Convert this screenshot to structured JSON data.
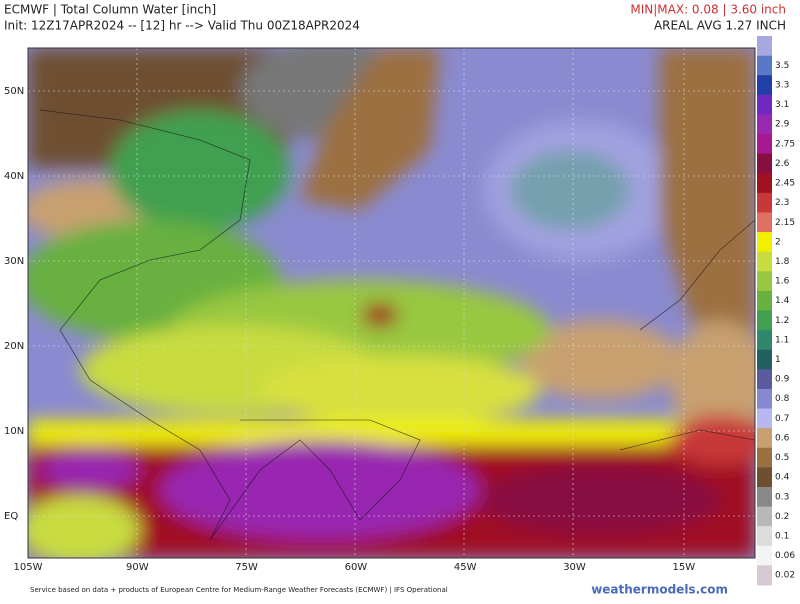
{
  "header": {
    "left": [
      "ECMWF | Total Column Water [inch]",
      "Init: 12Z17APR2024 -- [12] hr --> Valid Thu 00Z18APR2024"
    ],
    "right": [
      "MIN|MAX: 0.08 | 3.60 inch",
      "AREAL AVG 1.27 INCH"
    ]
  },
  "map": {
    "lat_labels": [
      "50N",
      "40N",
      "30N",
      "20N",
      "10N",
      "EQ"
    ],
    "lon_labels": [
      "105W",
      "90W",
      "75W",
      "60W",
      "45W",
      "30W",
      "15W"
    ]
  },
  "colorbar": {
    "top_color": "#a8a8e0",
    "items": [
      {
        "label": "3.5",
        "color": "#5a78c8"
      },
      {
        "label": "3.3",
        "color": "#2040a8"
      },
      {
        "label": "3.1",
        "color": "#7028c0"
      },
      {
        "label": "2.9",
        "color": "#9828b0"
      },
      {
        "label": "2.75",
        "color": "#a81890"
      },
      {
        "label": "2.6",
        "color": "#881040"
      },
      {
        "label": "2.45",
        "color": "#a01020"
      },
      {
        "label": "2.3",
        "color": "#c83838"
      },
      {
        "label": "2.15",
        "color": "#e07060"
      },
      {
        "label": "2",
        "color": "#f0f000"
      },
      {
        "label": "1.8",
        "color": "#c8dc40"
      },
      {
        "label": "1.6",
        "color": "#98c840"
      },
      {
        "label": "1.4",
        "color": "#68b040"
      },
      {
        "label": "1.2",
        "color": "#40a050"
      },
      {
        "label": "1.1",
        "color": "#30886c"
      },
      {
        "label": "1",
        "color": "#206060"
      },
      {
        "label": "0.9",
        "color": "#5a5a9c"
      },
      {
        "label": "0.8",
        "color": "#8888d0"
      },
      {
        "label": "0.7",
        "color": "#b8b8f0"
      },
      {
        "label": "0.6",
        "color": "#c8a070"
      },
      {
        "label": "0.5",
        "color": "#9c7040"
      },
      {
        "label": "0.4",
        "color": "#6e5030"
      },
      {
        "label": "0.3",
        "color": "#888888"
      },
      {
        "label": "0.2",
        "color": "#b8b8b8"
      },
      {
        "label": "0.1",
        "color": "#dcdcdc"
      },
      {
        "label": "0.06",
        "color": "#f4f4f4"
      },
      {
        "label": "0.02",
        "color": "#d8c8d4"
      }
    ]
  },
  "footer": {
    "credit": "Service based on data + products of European Centre for Medium-Range Weather Forecasts (ECMWF) | IFS Operational",
    "site": "weathermodels.com"
  }
}
